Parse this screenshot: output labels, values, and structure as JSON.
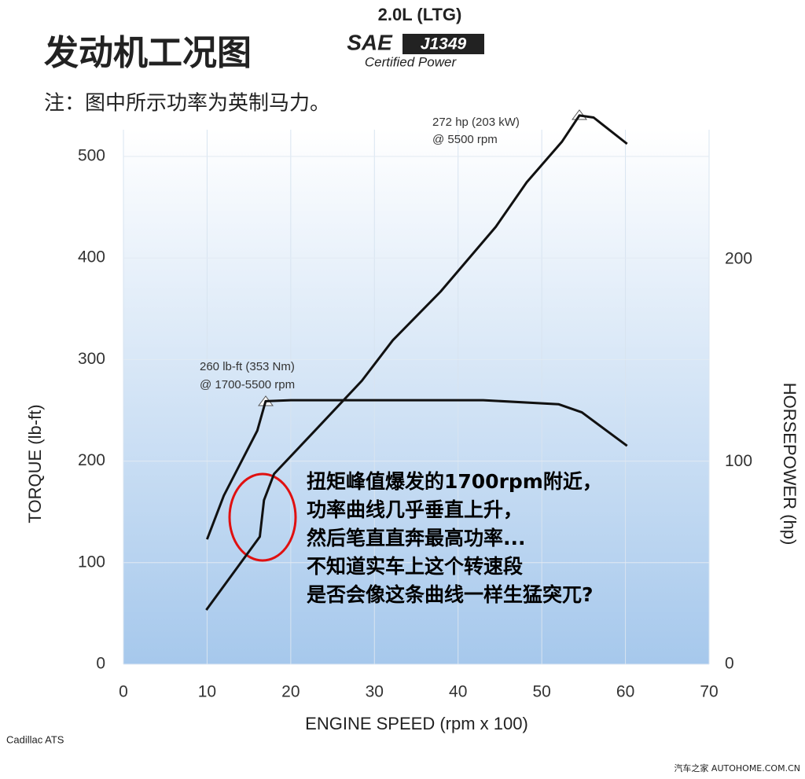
{
  "chart_data": {
    "type": "line",
    "title": "发动机工况图",
    "subtitle": "注：图中所示功率为英制马力。",
    "badge": {
      "engine": "2.0L (LTG)",
      "sae": "SAE",
      "standard": "J1349",
      "certification": "Certified Power"
    },
    "x_label": "ENGINE SPEED (rpm x 100)",
    "y_label": "TORQUE (lb-ft)",
    "y2_label": "HORSEPOWER (hp)",
    "xlim": [
      0,
      70
    ],
    "xticks": [
      0,
      10,
      20,
      30,
      40,
      50,
      60,
      70
    ],
    "ylim": [
      0,
      500
    ],
    "yticks": [
      0,
      100,
      200,
      300,
      400,
      500
    ],
    "y2lim": [
      0,
      250
    ],
    "y2ticks": [
      0,
      100,
      200
    ],
    "grid": true,
    "series": [
      {
        "color": "#111111",
        "x": [
          10,
          12,
          16,
          17,
          20,
          30,
          43,
          52,
          54.8,
          60.2
        ],
        "values": [
          123,
          166,
          230,
          259,
          260,
          260,
          260,
          256,
          248,
          215
        ]
      },
      {
        "color": "#111111",
        "axis": "y2",
        "x": [
          9.9,
          16.3,
          16.8,
          18,
          22.8,
          28.5,
          32.2,
          37.9,
          44.5,
          48.2,
          52.4,
          54.5,
          56.2,
          60.2
        ],
        "values": [
          26.8,
          63,
          81,
          94,
          115,
          140,
          160,
          184,
          216,
          238,
          258,
          271,
          270,
          257
        ]
      }
    ],
    "annotations": [
      "272 hp (203 kW)",
      "@ 5500 rpm",
      "260 lb-ft (353 Nm)",
      "@ 1700-5500 rpm"
    ],
    "comment": [
      "扭矩峰值爆发的1700rpm附近，",
      "功率曲线几乎垂直上升，",
      "然后笔直直奔最高功率...",
      "不知道实车上这个转速段",
      "是否会像这条曲线一样生猛突兀?"
    ],
    "source": "Cadillac ATS",
    "watermark": "汽车之家 AUTOHOME.COM.CN"
  }
}
